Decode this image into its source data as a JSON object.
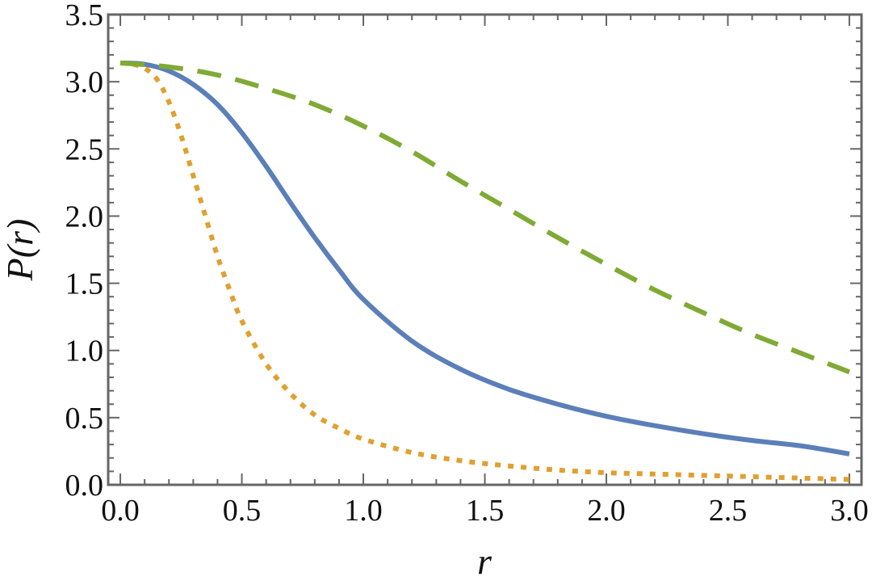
{
  "chart_data": {
    "type": "line",
    "xlabel": "r",
    "ylabel": "P(r)",
    "xlim": [
      -0.05,
      3.05
    ],
    "ylim": [
      0,
      3.5
    ],
    "x_ticks": [
      0.0,
      0.5,
      1.0,
      1.5,
      2.0,
      2.5,
      3.0
    ],
    "x_tick_labels": [
      "0.0",
      "0.5",
      "1.0",
      "1.5",
      "2.0",
      "2.5",
      "3.0"
    ],
    "y_ticks": [
      0.0,
      0.5,
      1.0,
      1.5,
      2.0,
      2.5,
      3.0,
      3.5
    ],
    "y_tick_labels": [
      "0.0",
      "0.5",
      "1.0",
      "1.5",
      "2.0",
      "2.5",
      "3.0",
      "3.5"
    ],
    "x_minor_step": 0.1,
    "y_minor_step": 0.1,
    "grid": false,
    "series": [
      {
        "style": "solid",
        "color": "#5b7fb8",
        "x": [
          0,
          0.1,
          0.2,
          0.3,
          0.4,
          0.5,
          0.6,
          0.7,
          0.8,
          0.9,
          1.0,
          1.2,
          1.4,
          1.6,
          1.8,
          2.0,
          2.2,
          2.4,
          2.6,
          2.8,
          3.0
        ],
        "y": [
          3.14,
          3.13,
          3.08,
          2.98,
          2.83,
          2.62,
          2.37,
          2.1,
          1.84,
          1.6,
          1.38,
          1.07,
          0.86,
          0.71,
          0.6,
          0.51,
          0.44,
          0.38,
          0.33,
          0.29,
          0.23
        ]
      },
      {
        "style": "dotted",
        "color": "#e0a030",
        "x": [
          0,
          0.05,
          0.1,
          0.15,
          0.2,
          0.25,
          0.3,
          0.35,
          0.4,
          0.45,
          0.5,
          0.6,
          0.7,
          0.8,
          0.9,
          1.0,
          1.2,
          1.4,
          1.6,
          1.8,
          2.0,
          2.2,
          2.4,
          2.6,
          2.8,
          3.0
        ],
        "y": [
          3.14,
          3.13,
          3.1,
          3.02,
          2.85,
          2.6,
          2.3,
          2.0,
          1.7,
          1.45,
          1.22,
          0.9,
          0.68,
          0.52,
          0.42,
          0.34,
          0.24,
          0.18,
          0.14,
          0.11,
          0.09,
          0.08,
          0.07,
          0.06,
          0.05,
          0.04
        ]
      },
      {
        "style": "dashed",
        "color": "#7faa35",
        "x": [
          0,
          0.2,
          0.4,
          0.6,
          0.8,
          1.0,
          1.2,
          1.4,
          1.6,
          1.8,
          2.0,
          2.2,
          2.4,
          2.6,
          2.8,
          3.0
        ],
        "y": [
          3.14,
          3.11,
          3.05,
          2.95,
          2.83,
          2.67,
          2.48,
          2.26,
          2.05,
          1.84,
          1.64,
          1.45,
          1.28,
          1.12,
          0.98,
          0.84
        ]
      }
    ]
  }
}
